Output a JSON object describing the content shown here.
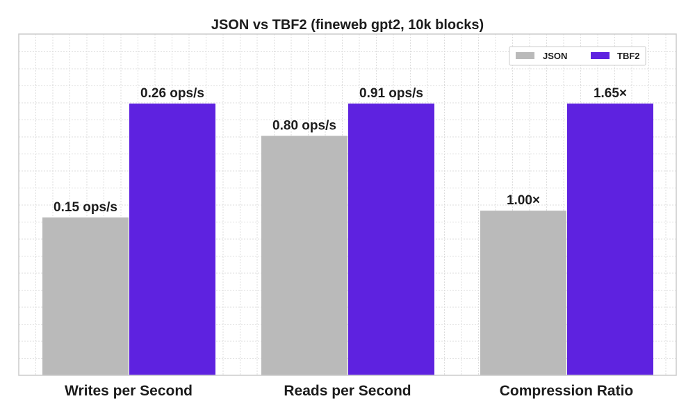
{
  "chart_data": {
    "type": "bar",
    "title": "JSON vs TBF2 (fineweb gpt2, 10k blocks)",
    "categories": [
      "Writes per Second",
      "Reads per Second",
      "Compression Ratio"
    ],
    "series": [
      {
        "name": "JSON",
        "color": "#bababa",
        "values": [
          0.15,
          0.8,
          1.0
        ],
        "labels": [
          "0.15 ops/s",
          "0.80 ops/s",
          "1.00×"
        ]
      },
      {
        "name": "TBF2",
        "color": "#5e22e0",
        "values": [
          0.26,
          0.91,
          1.65
        ],
        "labels": [
          "0.26 ops/s",
          "0.91 ops/s",
          "1.65×"
        ]
      }
    ],
    "normalized_fill": [
      [
        0.581,
        0.881,
        0.606
      ],
      [
        1.0,
        1.0,
        1.0
      ]
    ],
    "xlabel": "",
    "ylabel": "",
    "grid": true,
    "legend_position": "top-right",
    "y_tick_labels_shown": false
  }
}
